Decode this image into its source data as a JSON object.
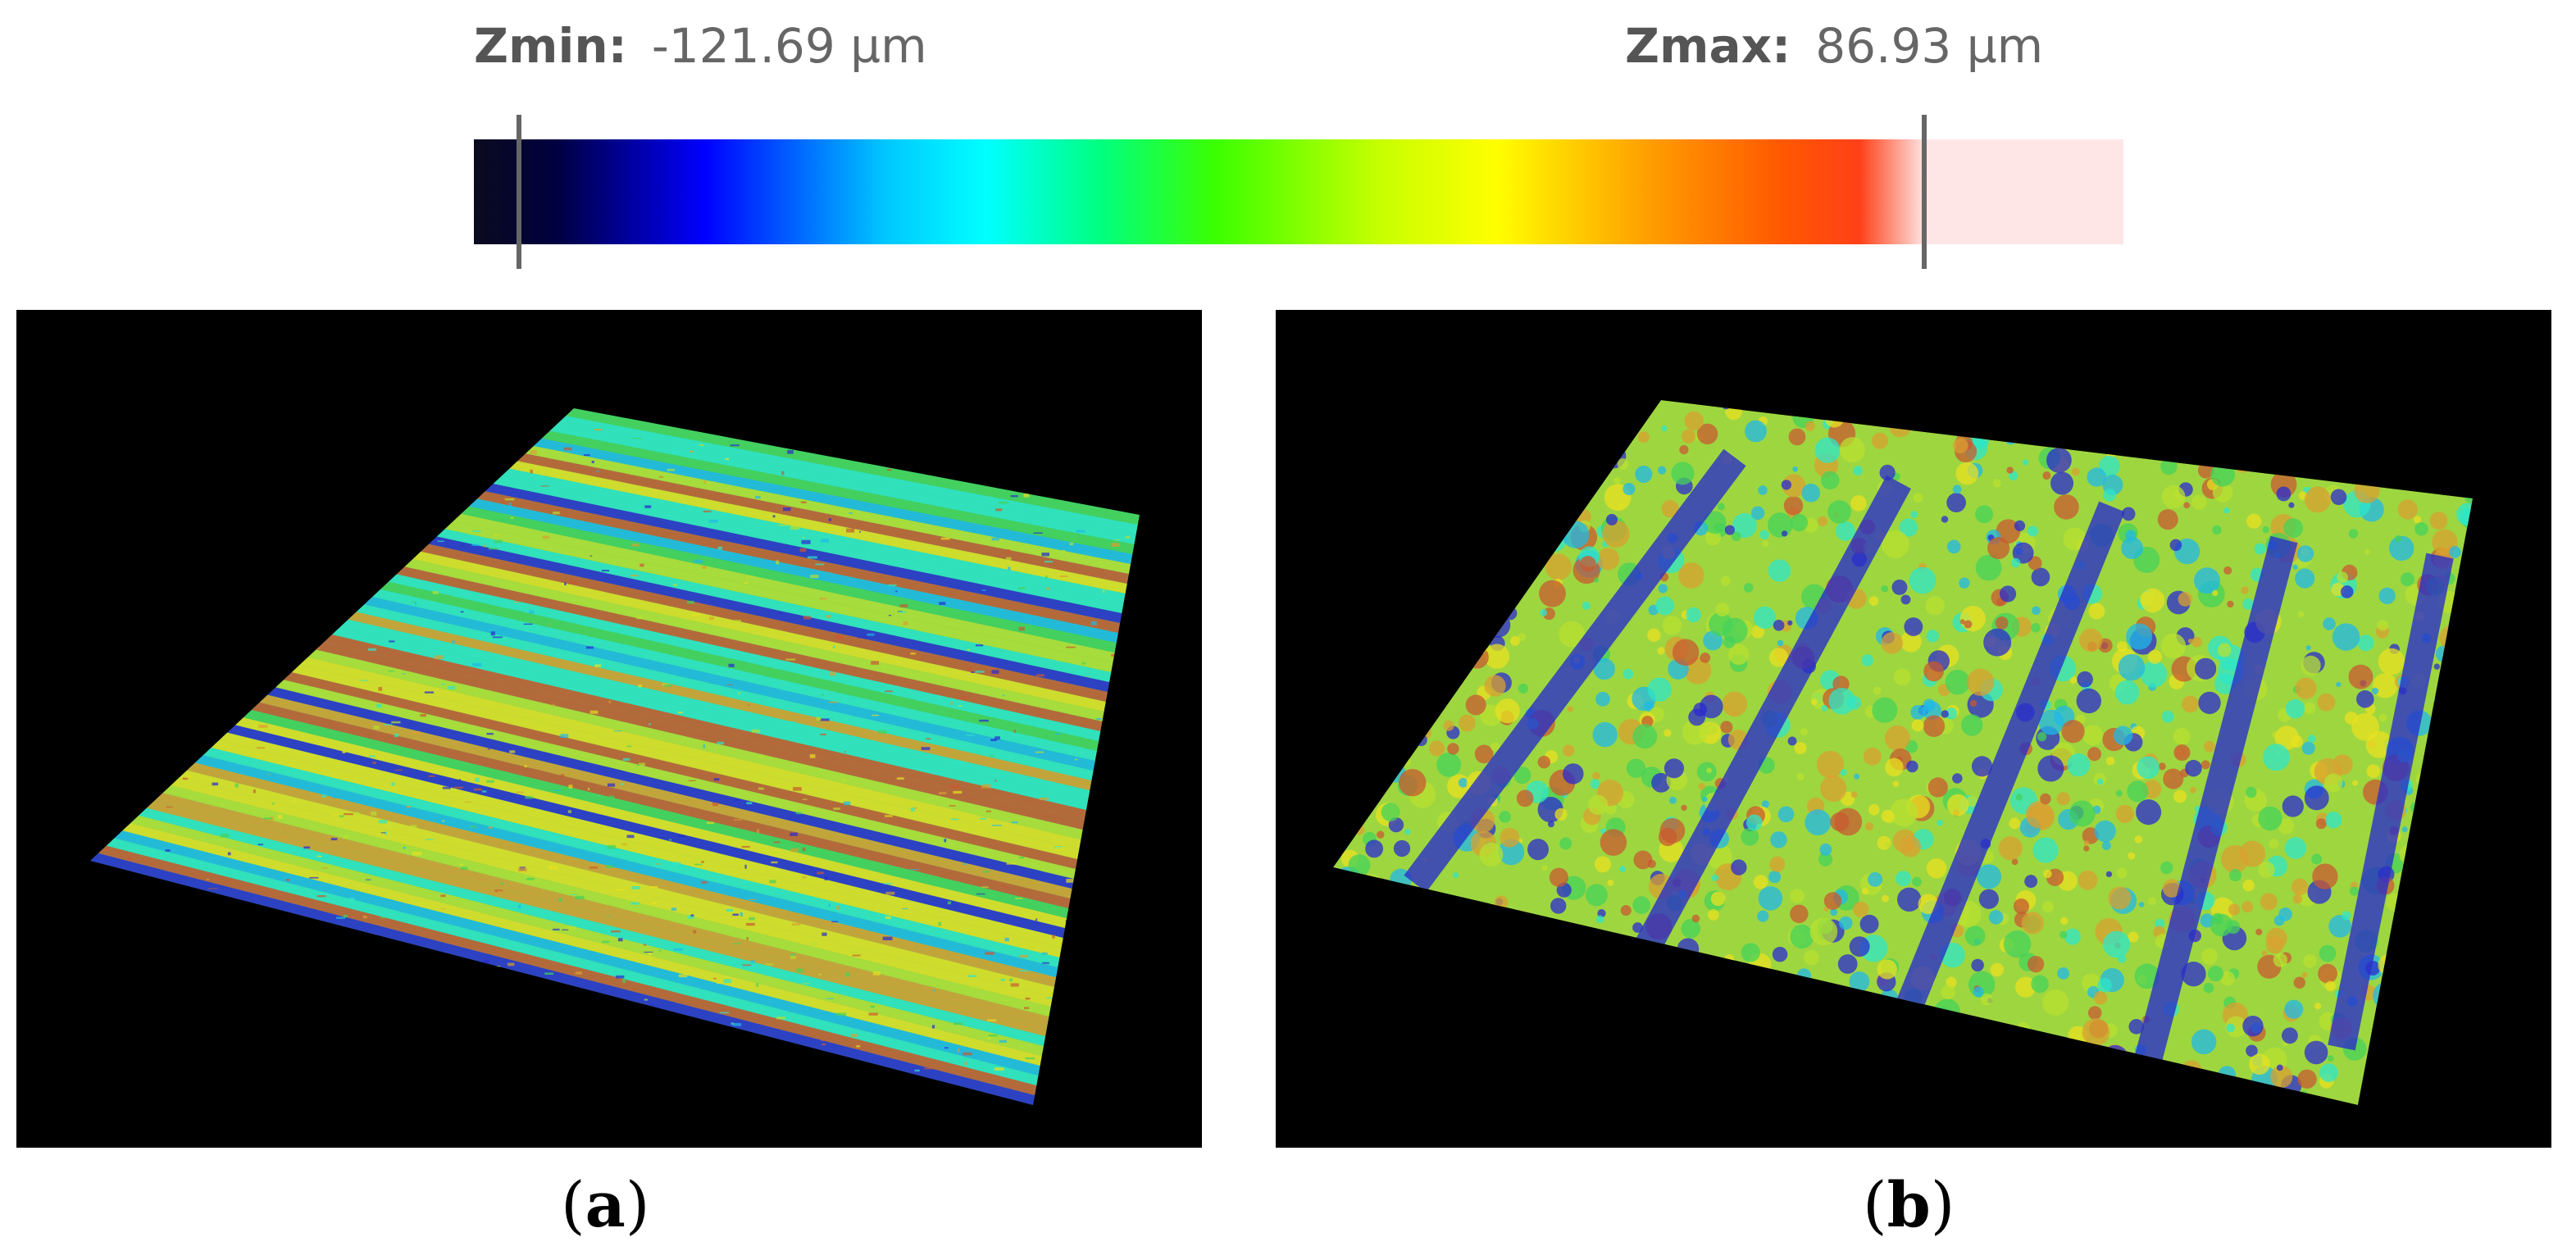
{
  "scale": {
    "zmin_label": "Zmin:",
    "zmin_value": "-121.69 µm",
    "zmax_label": "Zmax:",
    "zmax_value": "86.93 µm",
    "gradient_colors": [
      "#0a0a1e",
      "#000040",
      "#0000ff",
      "#00c8ff",
      "#00ffff",
      "#00ff80",
      "#3cff00",
      "#c8ff00",
      "#ffff00",
      "#ffa000",
      "#ff5a00",
      "#ff4018",
      "#ffe6e6"
    ]
  },
  "panels": [
    {
      "label": "a",
      "surface": "parallel-ridges"
    },
    {
      "label": "b",
      "surface": "rough-textured-with-grooves"
    }
  ],
  "colors": {
    "background": "#ffffff",
    "panel_background": "#000000",
    "surface_palette": [
      "#2a2ad0",
      "#1fb8e8",
      "#2ee6c8",
      "#44d25a",
      "#b8e030",
      "#e8e020",
      "#d8a030",
      "#c85a30"
    ]
  }
}
